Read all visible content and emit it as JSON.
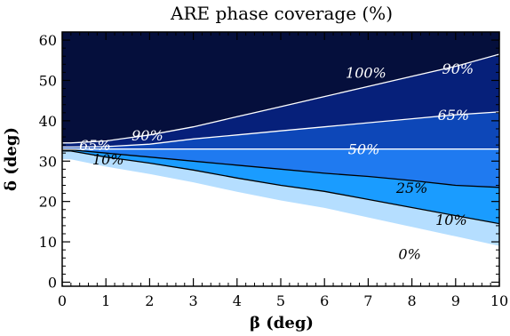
{
  "chart_data": {
    "type": "heatmap",
    "title": "ARE phase coverage (%)",
    "xlabel": "β (deg)",
    "ylabel": "δ (deg)",
    "xlim": [
      0,
      10
    ],
    "ylim": [
      -1,
      62
    ],
    "xticks": [
      0,
      1,
      2,
      3,
      4,
      5,
      6,
      7,
      8,
      9,
      10
    ],
    "yticks": [
      0,
      10,
      20,
      30,
      40,
      50,
      60
    ],
    "colorscale": {
      "0": "#ffffff",
      "10": "#a8d8ff",
      "25": "#1a9cff",
      "50": "#1f7af0",
      "65": "#0d47b8",
      "90": "#06207a",
      "100": "#050f3c"
    },
    "contours": [
      {
        "level": 10,
        "label": "10%",
        "color": "#000000",
        "points": [
          [
            0.2,
            32.5
          ],
          [
            1,
            31
          ],
          [
            2,
            29.5
          ],
          [
            3,
            27.8
          ],
          [
            4,
            25.8
          ],
          [
            5,
            24
          ],
          [
            6,
            22.5
          ],
          [
            7,
            20.5
          ],
          [
            8,
            18.5
          ],
          [
            9,
            16.5
          ],
          [
            10,
            14.5
          ]
        ]
      },
      {
        "level": 25,
        "label": "25%",
        "color": "#000000",
        "points": [
          [
            0.2,
            32.8
          ],
          [
            1,
            32
          ],
          [
            2,
            31
          ],
          [
            3,
            30
          ],
          [
            4,
            29
          ],
          [
            5,
            28
          ],
          [
            6,
            27
          ],
          [
            7,
            26.2
          ],
          [
            8,
            25.2
          ],
          [
            9,
            24
          ],
          [
            10,
            23.5
          ]
        ]
      },
      {
        "level": 50,
        "label": "50%",
        "color": "#ffffff",
        "points": [
          [
            0.2,
            33
          ],
          [
            2,
            33
          ],
          [
            4,
            33
          ],
          [
            6,
            33
          ],
          [
            8,
            33
          ],
          [
            10,
            33
          ]
        ]
      },
      {
        "level": 65,
        "label": "65%",
        "color": "#ffffff",
        "points": [
          [
            0.2,
            33.5
          ],
          [
            1,
            33.6
          ],
          [
            2,
            34.2
          ],
          [
            3,
            35.5
          ],
          [
            4,
            36.5
          ],
          [
            5,
            37.5
          ],
          [
            6,
            38.5
          ],
          [
            7,
            39.5
          ],
          [
            8,
            40.5
          ],
          [
            9,
            41.5
          ],
          [
            10,
            42.2
          ]
        ]
      },
      {
        "level": 90,
        "label": "90%",
        "color": "#ffffff",
        "points": [
          [
            0.2,
            34.5
          ],
          [
            1,
            35
          ],
          [
            2,
            36.5
          ],
          [
            3,
            38.5
          ],
          [
            4,
            41
          ],
          [
            5,
            43.5
          ],
          [
            6,
            46
          ],
          [
            7,
            48.5
          ],
          [
            8,
            51
          ],
          [
            9,
            53.5
          ],
          [
            10,
            56.5
          ]
        ]
      }
    ],
    "labels": [
      {
        "text": "100%",
        "x": 6.95,
        "y": 52,
        "color": "#ffffff"
      },
      {
        "text": "90%",
        "x": 9.05,
        "y": 53,
        "color": "#ffffff"
      },
      {
        "text": "90%",
        "x": 1.95,
        "y": 36.5,
        "color": "#ffffff"
      },
      {
        "text": "65%",
        "x": 0.75,
        "y": 34,
        "color": "#ffffff"
      },
      {
        "text": "65%",
        "x": 8.95,
        "y": 41.5,
        "color": "#ffffff"
      },
      {
        "text": "50%",
        "x": 6.9,
        "y": 33,
        "color": "#ffffff"
      },
      {
        "text": "10%",
        "x": 1.05,
        "y": 30.5,
        "color": "#000000"
      },
      {
        "text": "25%",
        "x": 8.0,
        "y": 23.5,
        "color": "#000000"
      },
      {
        "text": "10%",
        "x": 8.9,
        "y": 15.5,
        "color": "#000000"
      },
      {
        "text": "0%",
        "x": 7.95,
        "y": 7,
        "color": "#000000"
      }
    ],
    "grid": false,
    "legend": "none"
  }
}
